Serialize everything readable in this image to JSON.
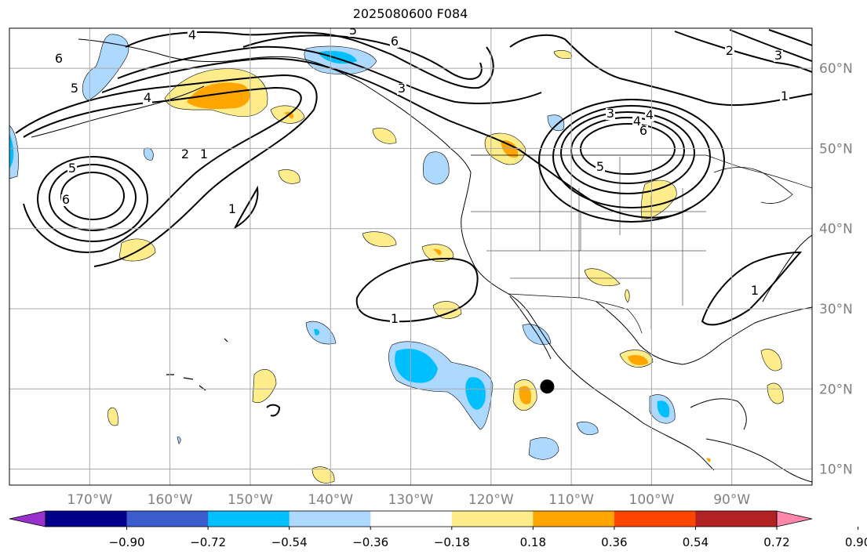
{
  "title": "2025080600 F084",
  "map": {
    "lon_range": [
      -180,
      -80
    ],
    "lat_range": [
      8,
      65
    ],
    "lon_ticks": [
      {
        "value": -170,
        "label": "170°W"
      },
      {
        "value": -160,
        "label": "160°W"
      },
      {
        "value": -150,
        "label": "150°W"
      },
      {
        "value": -140,
        "label": "140°W"
      },
      {
        "value": -130,
        "label": "130°W"
      },
      {
        "value": -120,
        "label": "120°W"
      },
      {
        "value": -110,
        "label": "110°W"
      },
      {
        "value": -100,
        "label": "100°W"
      },
      {
        "value": -90,
        "label": "90°W"
      }
    ],
    "lat_ticks": [
      {
        "value": 60,
        "label": "60°N"
      },
      {
        "value": 50,
        "label": "50°N"
      },
      {
        "value": 40,
        "label": "40°N"
      },
      {
        "value": 30,
        "label": "30°N"
      },
      {
        "value": 20,
        "label": "20°N"
      },
      {
        "value": 10,
        "label": "10°N"
      }
    ],
    "grid": true,
    "marker": {
      "label_icon": "black-dot",
      "lon": -113,
      "lat": 20.3
    },
    "contour_labels": [
      "6",
      "5",
      "4",
      "4",
      "6",
      "5",
      "2",
      "1",
      "6",
      "5",
      "3",
      "2",
      "3",
      "1",
      "3",
      "4",
      "6",
      "5",
      "1",
      "1",
      "1",
      "4"
    ]
  },
  "colorbar": {
    "colors": [
      "#9932cc",
      "#00008b",
      "#3a5ccc",
      "#00bfff",
      "#add8ff",
      "#ffffff",
      "#ffec8b",
      "#ffa500",
      "#ff4500",
      "#b22222",
      "#ff88aa"
    ],
    "ticks": [
      "−0.90",
      "−0.72",
      "−0.54",
      "−0.36",
      "−0.18",
      "0.18",
      "0.36",
      "0.54",
      "0.72",
      "0.90"
    ],
    "extend": "both"
  },
  "fill_colors": {
    "neg_light": "#add8ff",
    "neg_mid": "#00bfff",
    "pos_light": "#ffec8b",
    "pos_mid": "#ffa500"
  }
}
